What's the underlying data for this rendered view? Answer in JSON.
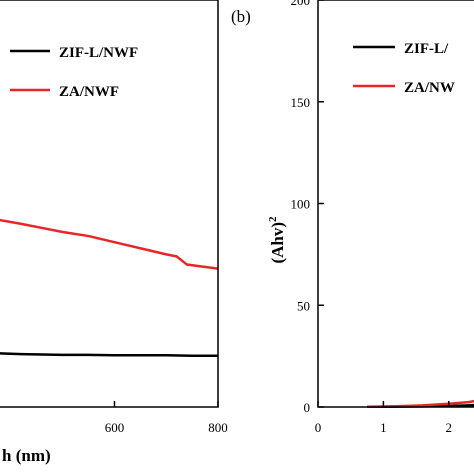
{
  "chart_data": [
    {
      "type": "line",
      "panel_label": "",
      "xlabel": "h (nm)",
      "ylabel": "",
      "xlim": [
        375,
        800
      ],
      "ylim": [
        0,
        1
      ],
      "x_ticks": [
        600,
        800
      ],
      "y_ticks": [],
      "legend": [
        "ZIF-L/NWF",
        "ZA/NWF"
      ],
      "legend_position": "top-right",
      "series": [
        {
          "name": "ZIF-L/NWF",
          "color": "#000000",
          "x": [
            375,
            420,
            460,
            500,
            550,
            600,
            650,
            700,
            750,
            800
          ],
          "y": [
            0.132,
            0.13,
            0.129,
            0.128,
            0.128,
            0.127,
            0.127,
            0.127,
            0.126,
            0.126
          ]
        },
        {
          "name": "ZA/NWF",
          "color": "#e8262a",
          "x": [
            375,
            420,
            460,
            500,
            550,
            600,
            650,
            700,
            720,
            740,
            770,
            800
          ],
          "y": [
            0.46,
            0.45,
            0.44,
            0.43,
            0.42,
            0.405,
            0.39,
            0.375,
            0.37,
            0.35,
            0.345,
            0.34
          ]
        }
      ]
    },
    {
      "type": "line",
      "panel_label": "(b)",
      "xlabel": "",
      "ylabel": "(Ahv)",
      "ylabel_superscript": "2",
      "xlim": [
        0,
        2.6
      ],
      "ylim": [
        0,
        200
      ],
      "x_ticks": [
        0,
        1,
        2
      ],
      "y_ticks": [
        0,
        50,
        100,
        150,
        200
      ],
      "legend": [
        "ZIF-L/",
        "ZA/NW"
      ],
      "legend_position": "top-right",
      "series": [
        {
          "name": "ZIF-L/",
          "color": "#000000",
          "x": [
            0.75,
            1.2,
            1.6,
            2.0,
            2.3,
            2.6
          ],
          "y": [
            0.1,
            0.2,
            0.3,
            0.5,
            0.8,
            1.2
          ]
        },
        {
          "name": "ZA/NW",
          "color": "#e8262a",
          "x": [
            0.75,
            1.2,
            1.6,
            2.0,
            2.3,
            2.45,
            2.6
          ],
          "y": [
            0.1,
            0.4,
            0.8,
            1.6,
            2.4,
            3.2,
            3.8
          ]
        }
      ]
    }
  ]
}
